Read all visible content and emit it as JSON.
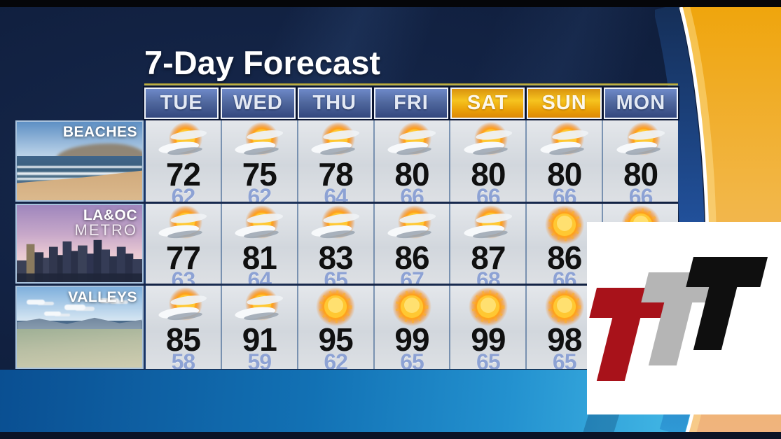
{
  "title": "7-Day Forecast",
  "days": [
    {
      "label": "TUE",
      "weekend": false
    },
    {
      "label": "WED",
      "weekend": false
    },
    {
      "label": "THU",
      "weekend": false
    },
    {
      "label": "FRI",
      "weekend": false
    },
    {
      "label": "SAT",
      "weekend": true
    },
    {
      "label": "SUN",
      "weekend": true
    },
    {
      "label": "MON",
      "weekend": false
    }
  ],
  "rows": [
    {
      "label": "BEACHES",
      "sublabel": "",
      "scene": "beach",
      "cells": [
        {
          "icon": "sun-clouds",
          "hi": "72",
          "lo": "62"
        },
        {
          "icon": "sun-clouds",
          "hi": "75",
          "lo": "62"
        },
        {
          "icon": "sun-clouds",
          "hi": "78",
          "lo": "64"
        },
        {
          "icon": "sun-clouds",
          "hi": "80",
          "lo": "66"
        },
        {
          "icon": "sun-clouds",
          "hi": "80",
          "lo": "66"
        },
        {
          "icon": "sun-clouds",
          "hi": "80",
          "lo": "66"
        },
        {
          "icon": "sun-clouds",
          "hi": "80",
          "lo": "66"
        }
      ]
    },
    {
      "label": "LA&OC",
      "sublabel": "METRO",
      "scene": "city",
      "cells": [
        {
          "icon": "sun-clouds",
          "hi": "77",
          "lo": "63"
        },
        {
          "icon": "sun-clouds",
          "hi": "81",
          "lo": "64"
        },
        {
          "icon": "sun-clouds",
          "hi": "83",
          "lo": "65"
        },
        {
          "icon": "sun-clouds",
          "hi": "86",
          "lo": "67"
        },
        {
          "icon": "sun-clouds",
          "hi": "87",
          "lo": "68"
        },
        {
          "icon": "sunny",
          "hi": "86",
          "lo": "66"
        },
        {
          "icon": "sunny",
          "hi": null,
          "lo": null
        }
      ]
    },
    {
      "label": "VALLEYS",
      "sublabel": "",
      "scene": "valley",
      "cells": [
        {
          "icon": "sun-clouds",
          "hi": "85",
          "lo": "58"
        },
        {
          "icon": "sun-clouds",
          "hi": "91",
          "lo": "59"
        },
        {
          "icon": "sunny",
          "hi": "95",
          "lo": "62"
        },
        {
          "icon": "sunny",
          "hi": "99",
          "lo": "65"
        },
        {
          "icon": "sunny",
          "hi": "99",
          "lo": "65"
        },
        {
          "icon": "sunny",
          "hi": "98",
          "lo": "65"
        },
        {
          "icon": null,
          "hi": null,
          "lo": null
        }
      ]
    }
  ],
  "logo": {
    "letters": [
      "T",
      "T",
      "T"
    ],
    "colors": [
      "#a8121a",
      "#b5b5b5",
      "#0f0f0f"
    ]
  },
  "colors": {
    "weekday_header": "#3e5aa0",
    "weekend_header": "#f0ad12",
    "high_temp": "#101010",
    "low_temp": "#8da2d4",
    "gold_line": "#ddc84a",
    "swoosh_orange": "#f0a818"
  }
}
